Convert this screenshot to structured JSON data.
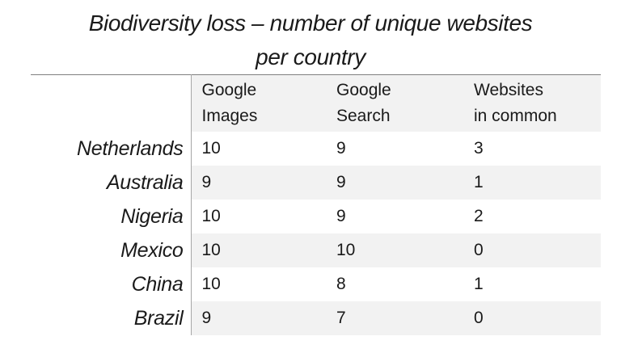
{
  "title": {
    "line1": "Biodiversity loss – number of unique websites",
    "line2": "per country"
  },
  "table": {
    "header": {
      "cols": [
        {
          "line1": "Google",
          "line2": "Images"
        },
        {
          "line1": "Google",
          "line2": "Search"
        },
        {
          "line1": "Websites",
          "line2": "in common"
        }
      ]
    }
  },
  "chart_data": {
    "type": "table",
    "title": "Biodiversity loss – number of unique websites per country",
    "columns": [
      "",
      "Google Images",
      "Google Search",
      "Websites in common"
    ],
    "rows": [
      {
        "country": "Netherlands",
        "google_images": 10,
        "google_search": 9,
        "websites_in_common": 3
      },
      {
        "country": "Australia",
        "google_images": 9,
        "google_search": 9,
        "websites_in_common": 1
      },
      {
        "country": "Nigeria",
        "google_images": 10,
        "google_search": 9,
        "websites_in_common": 2
      },
      {
        "country": "Mexico",
        "google_images": 10,
        "google_search": 10,
        "websites_in_common": 0
      },
      {
        "country": "China",
        "google_images": 10,
        "google_search": 8,
        "websites_in_common": 1
      },
      {
        "country": "Brazil",
        "google_images": 9,
        "google_search": 7,
        "websites_in_common": 0
      }
    ],
    "layout": {
      "striped_rows": true,
      "stripe_on_data_columns_only": true
    }
  },
  "colors": {
    "stripe": "#f2f2f2",
    "table_top_border": "#7f7f7f",
    "column_divider": "#a6a6a6",
    "text": "#1a1a1a",
    "background": "#ffffff"
  }
}
